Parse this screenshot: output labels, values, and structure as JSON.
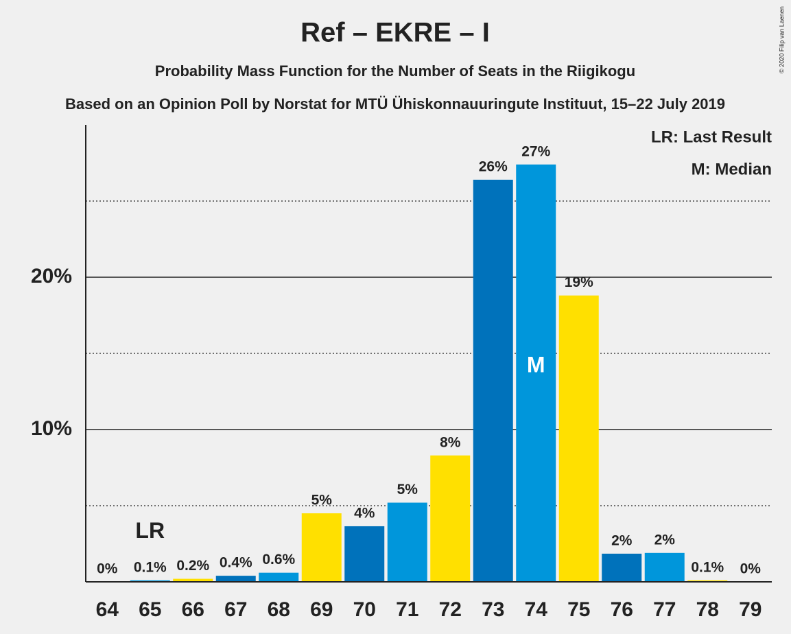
{
  "chart_data": {
    "type": "bar",
    "title": "Ref – EKRE – I",
    "subtitle": "Probability Mass Function for the Number of Seats in the Riigikogu",
    "caption": "Based on an Opinion Poll by Norstat for MTÜ Ühiskonnauuringute Instituut, 15–22 July 2019",
    "copyright": "© 2020 Filip van Laenen",
    "categories": [
      "64",
      "65",
      "66",
      "67",
      "68",
      "69",
      "70",
      "71",
      "72",
      "73",
      "74",
      "75",
      "76",
      "77",
      "78",
      "79"
    ],
    "values": [
      0,
      0.1,
      0.2,
      0.4,
      0.6,
      4.5,
      3.65,
      5.2,
      8.3,
      26.4,
      27.4,
      18.8,
      1.85,
      1.9,
      0.1,
      0
    ],
    "value_labels": [
      "0%",
      "0.1%",
      "0.2%",
      "0.4%",
      "0.6%",
      "5%",
      "4%",
      "5%",
      "8%",
      "26%",
      "27%",
      "19%",
      "2%",
      "2%",
      "0.1%",
      "0%"
    ],
    "colors": [
      "#0072bb",
      "#0096db",
      "#ffe000",
      "#0072bb",
      "#0096db",
      "#ffe000",
      "#0072bb",
      "#0096db",
      "#ffe000",
      "#0072bb",
      "#0096db",
      "#ffe000",
      "#0072bb",
      "#0096db",
      "#ffe000",
      "#0072bb"
    ],
    "ylim": [
      0,
      30
    ],
    "yticks": [
      {
        "value": 10,
        "label": "10%"
      },
      {
        "value": 20,
        "label": "20%"
      }
    ],
    "minor_yticks": [
      5,
      15,
      25
    ],
    "grid": true,
    "annotations": [
      {
        "text": "LR",
        "at": "65",
        "place": "above"
      },
      {
        "text": "M",
        "at": "74",
        "place": "inside"
      }
    ],
    "legend": [
      "LR: Last Result",
      "M: Median"
    ]
  }
}
